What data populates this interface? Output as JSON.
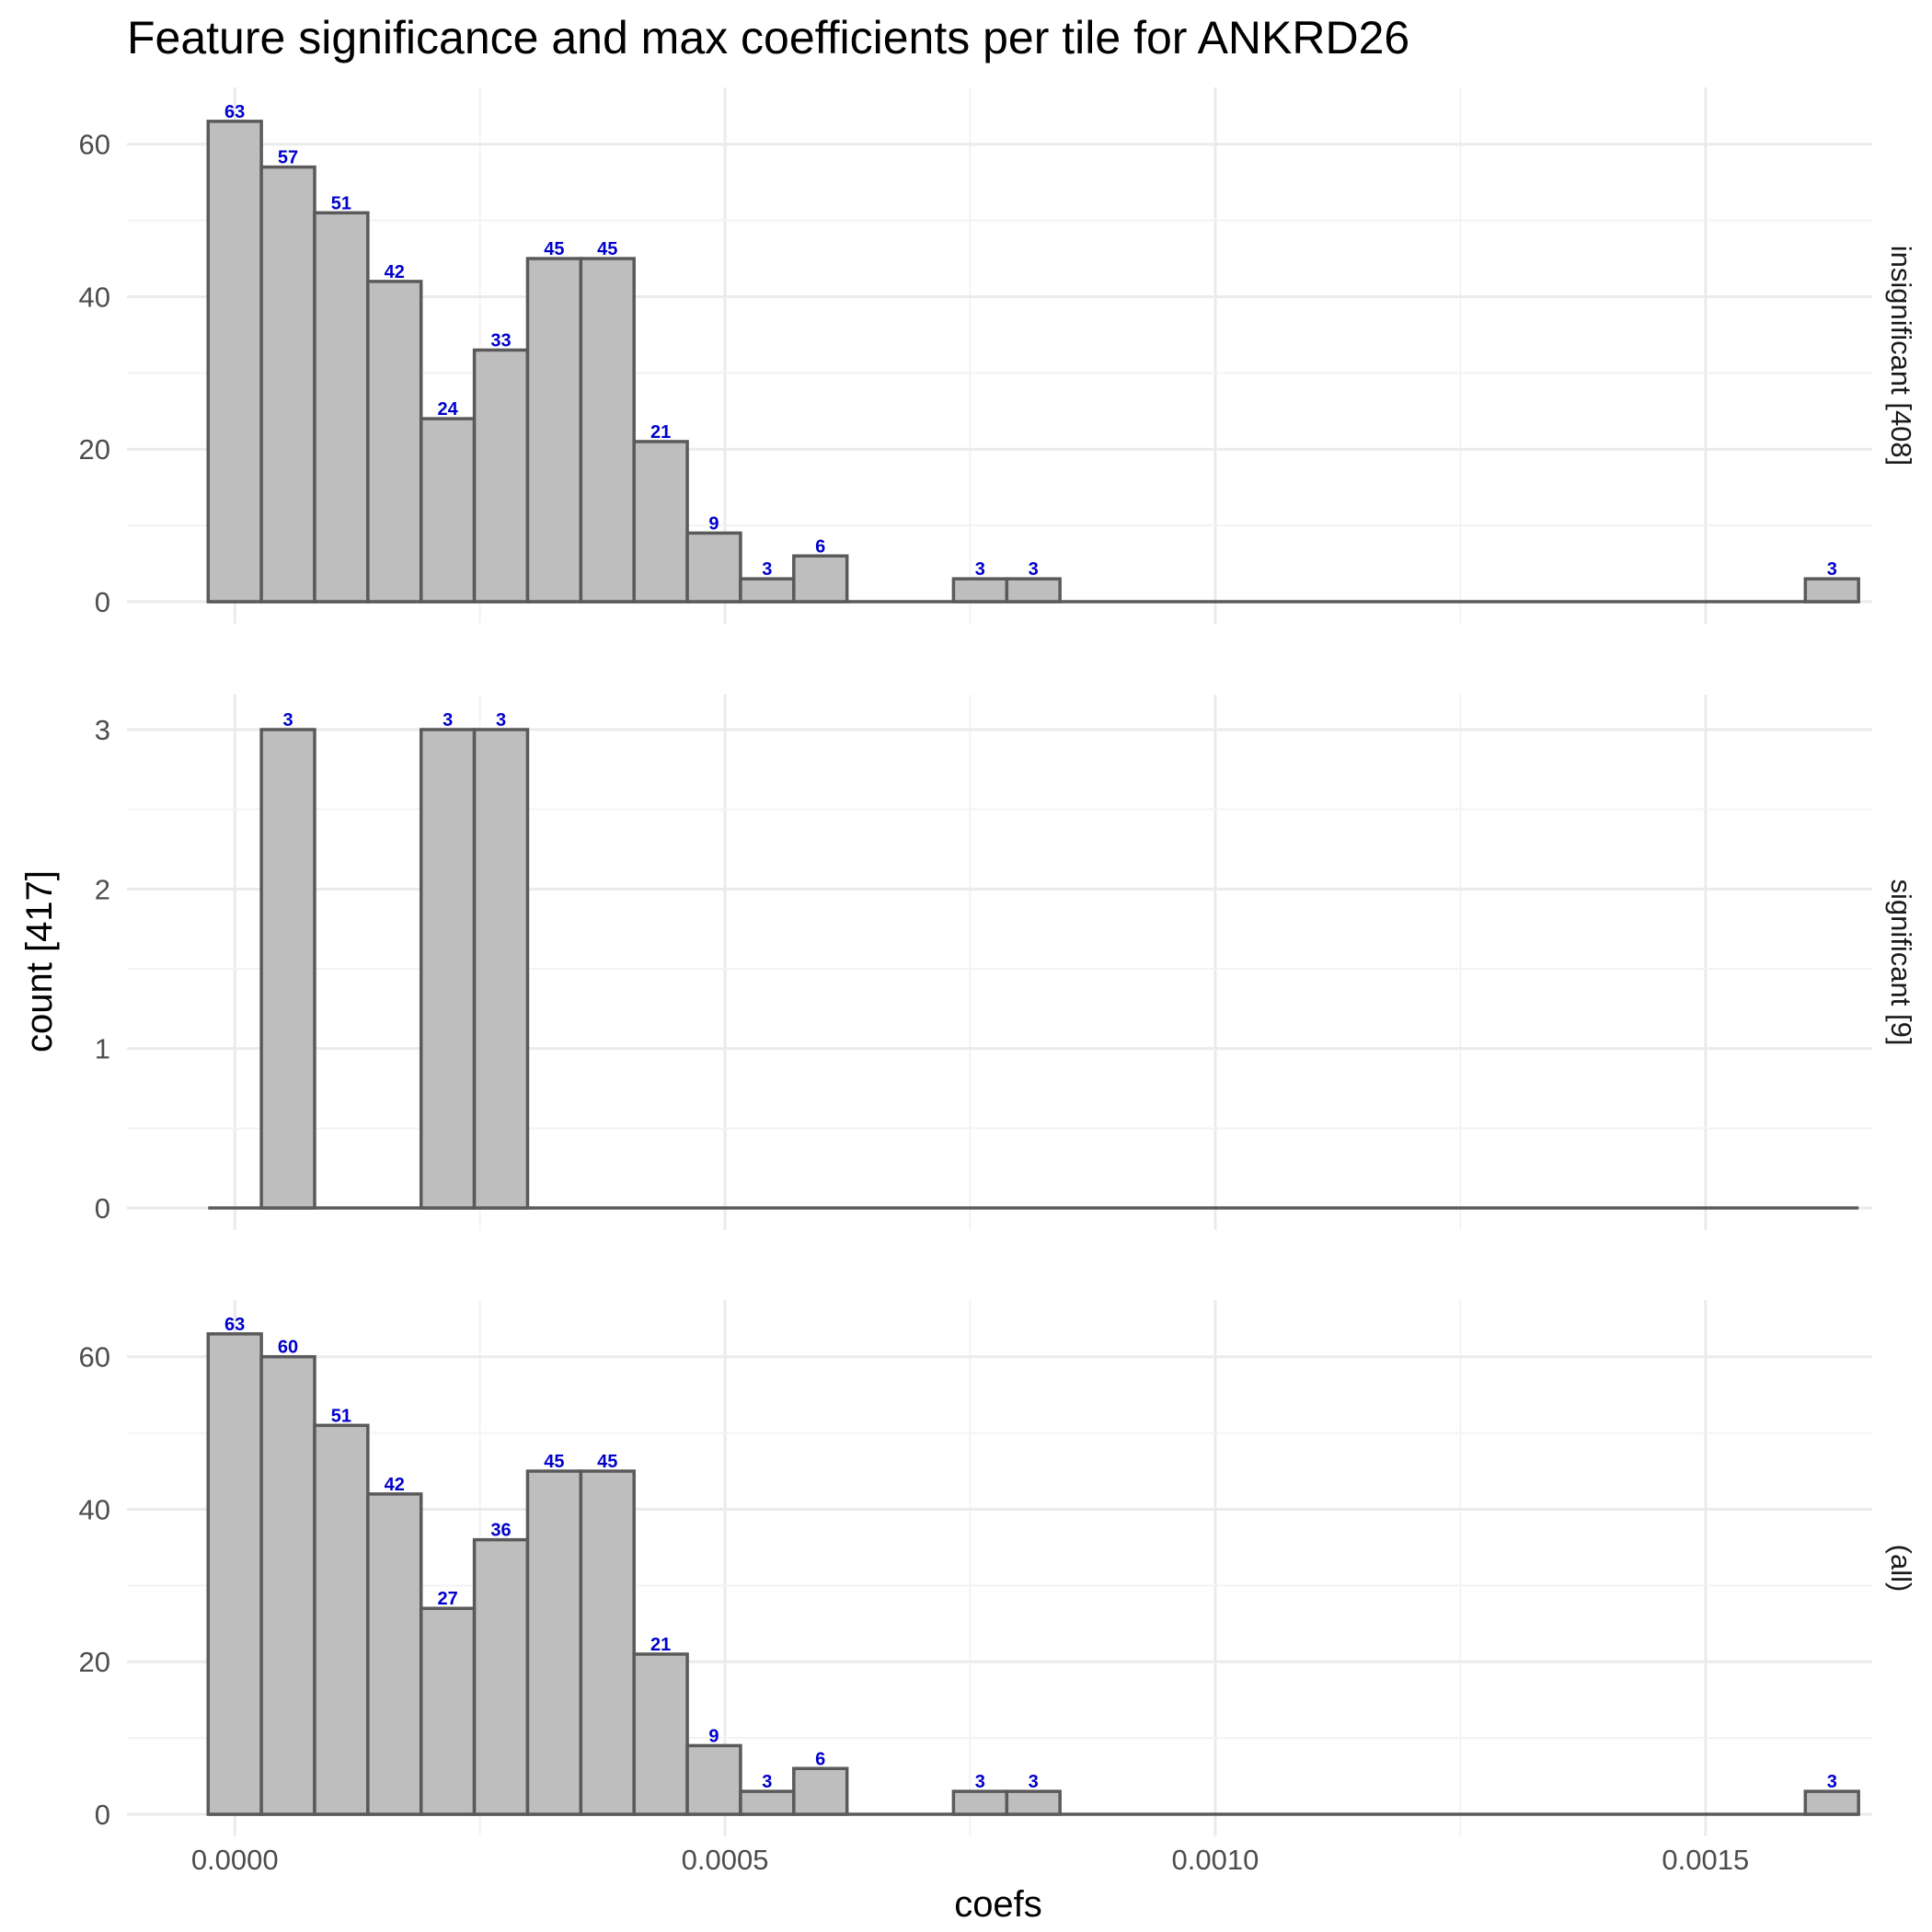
{
  "chart_data": {
    "type": "bar",
    "title": "Feature significance and max coefficients per tile for ANKRD26",
    "xlabel": "coefs",
    "ylabel": "count [417]",
    "x_ticks": [
      "0.0000",
      "0.0005",
      "0.0010",
      "0.0015"
    ],
    "x_tick_values": [
      0,
      0.0005,
      0.001,
      0.0015
    ],
    "xlim": [
      -0.00011,
      0.00167
    ],
    "bin_width": 5.43e-05,
    "bin_start": -2.72e-05,
    "colors": {
      "bar_fill": "#bebebe",
      "bar_stroke": "#5a5a5a",
      "label": "#0000cc"
    },
    "panels": [
      {
        "strip": "insignificant [408]",
        "ylim": [
          0,
          66
        ],
        "y_ticks": [
          "0",
          "20",
          "40",
          "60"
        ],
        "y_tick_values": [
          0,
          20,
          40,
          60
        ],
        "counts": [
          63,
          57,
          51,
          42,
          24,
          33,
          45,
          45,
          21,
          9,
          3,
          6,
          0,
          0,
          3,
          3,
          0,
          0,
          0,
          0,
          0,
          0,
          0,
          0,
          0,
          0,
          0,
          0,
          0,
          0,
          3
        ],
        "labels": [
          "63",
          "57",
          "51",
          "42",
          "24",
          "33",
          "45",
          "45",
          "21",
          "9",
          "3",
          "6",
          "",
          "",
          "3",
          "3",
          "",
          "",
          "",
          "",
          "",
          "",
          "",
          "",
          "",
          "",
          "",
          "",
          "",
          "",
          "3"
        ]
      },
      {
        "strip": "significant [9]",
        "ylim": [
          0,
          3.15
        ],
        "y_ticks": [
          "0",
          "1",
          "2",
          "3"
        ],
        "y_tick_values": [
          0,
          1,
          2,
          3
        ],
        "counts": [
          0,
          3,
          0,
          0,
          3,
          3,
          0,
          0,
          0,
          0,
          0,
          0,
          0,
          0,
          0,
          0,
          0,
          0,
          0,
          0,
          0,
          0,
          0,
          0,
          0,
          0,
          0,
          0,
          0,
          0,
          0
        ],
        "labels": [
          "",
          "3",
          "",
          "",
          "3",
          "3",
          "",
          "",
          "",
          "",
          "",
          "",
          "",
          "",
          "",
          "",
          "",
          "",
          "",
          "",
          "",
          "",
          "",
          "",
          "",
          "",
          "",
          "",
          "",
          "",
          ""
        ]
      },
      {
        "strip": "(all)",
        "ylim": [
          0,
          66
        ],
        "y_ticks": [
          "0",
          "20",
          "40",
          "60"
        ],
        "y_tick_values": [
          0,
          20,
          40,
          60
        ],
        "counts": [
          63,
          60,
          51,
          42,
          27,
          36,
          45,
          45,
          21,
          9,
          3,
          6,
          0,
          0,
          3,
          3,
          0,
          0,
          0,
          0,
          0,
          0,
          0,
          0,
          0,
          0,
          0,
          0,
          0,
          0,
          3
        ],
        "labels": [
          "63",
          "60",
          "51",
          "42",
          "27",
          "36",
          "45",
          "45",
          "21",
          "9",
          "3",
          "6",
          "",
          "",
          "3",
          "3",
          "",
          "",
          "",
          "",
          "",
          "",
          "",
          "",
          "",
          "",
          "",
          "",
          "",
          "",
          "3"
        ]
      }
    ]
  }
}
